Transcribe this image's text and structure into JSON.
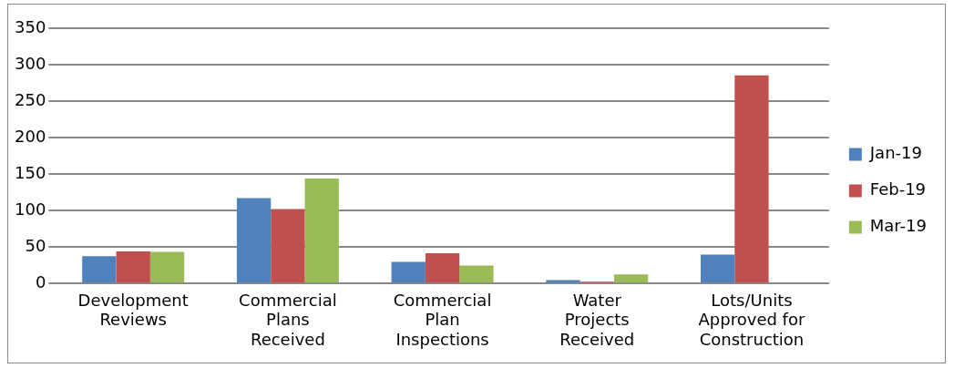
{
  "chart_data": {
    "type": "bar",
    "categories": [
      "Development Reviews",
      "Commercial Plans Received",
      "Commercial Plan Inspections",
      "Water Projects Received",
      "Lots/Units Approved for Construction"
    ],
    "series": [
      {
        "name": "Jan-19",
        "color": "#4f81bd",
        "values": [
          37.5,
          117,
          29.5,
          4.5,
          39.5
        ]
      },
      {
        "name": "Feb-19",
        "color": "#c0504d",
        "values": [
          44,
          102,
          41.5,
          2.5,
          285.5
        ]
      },
      {
        "name": "Mar-19",
        "color": "#9bbb59",
        "values": [
          43.5,
          144,
          24.5,
          12.5,
          null
        ]
      }
    ],
    "ylim": [
      0,
      350
    ],
    "yticks": [
      0,
      50,
      100,
      150,
      200,
      250,
      300,
      350
    ],
    "grid": "y",
    "legend": "right"
  }
}
